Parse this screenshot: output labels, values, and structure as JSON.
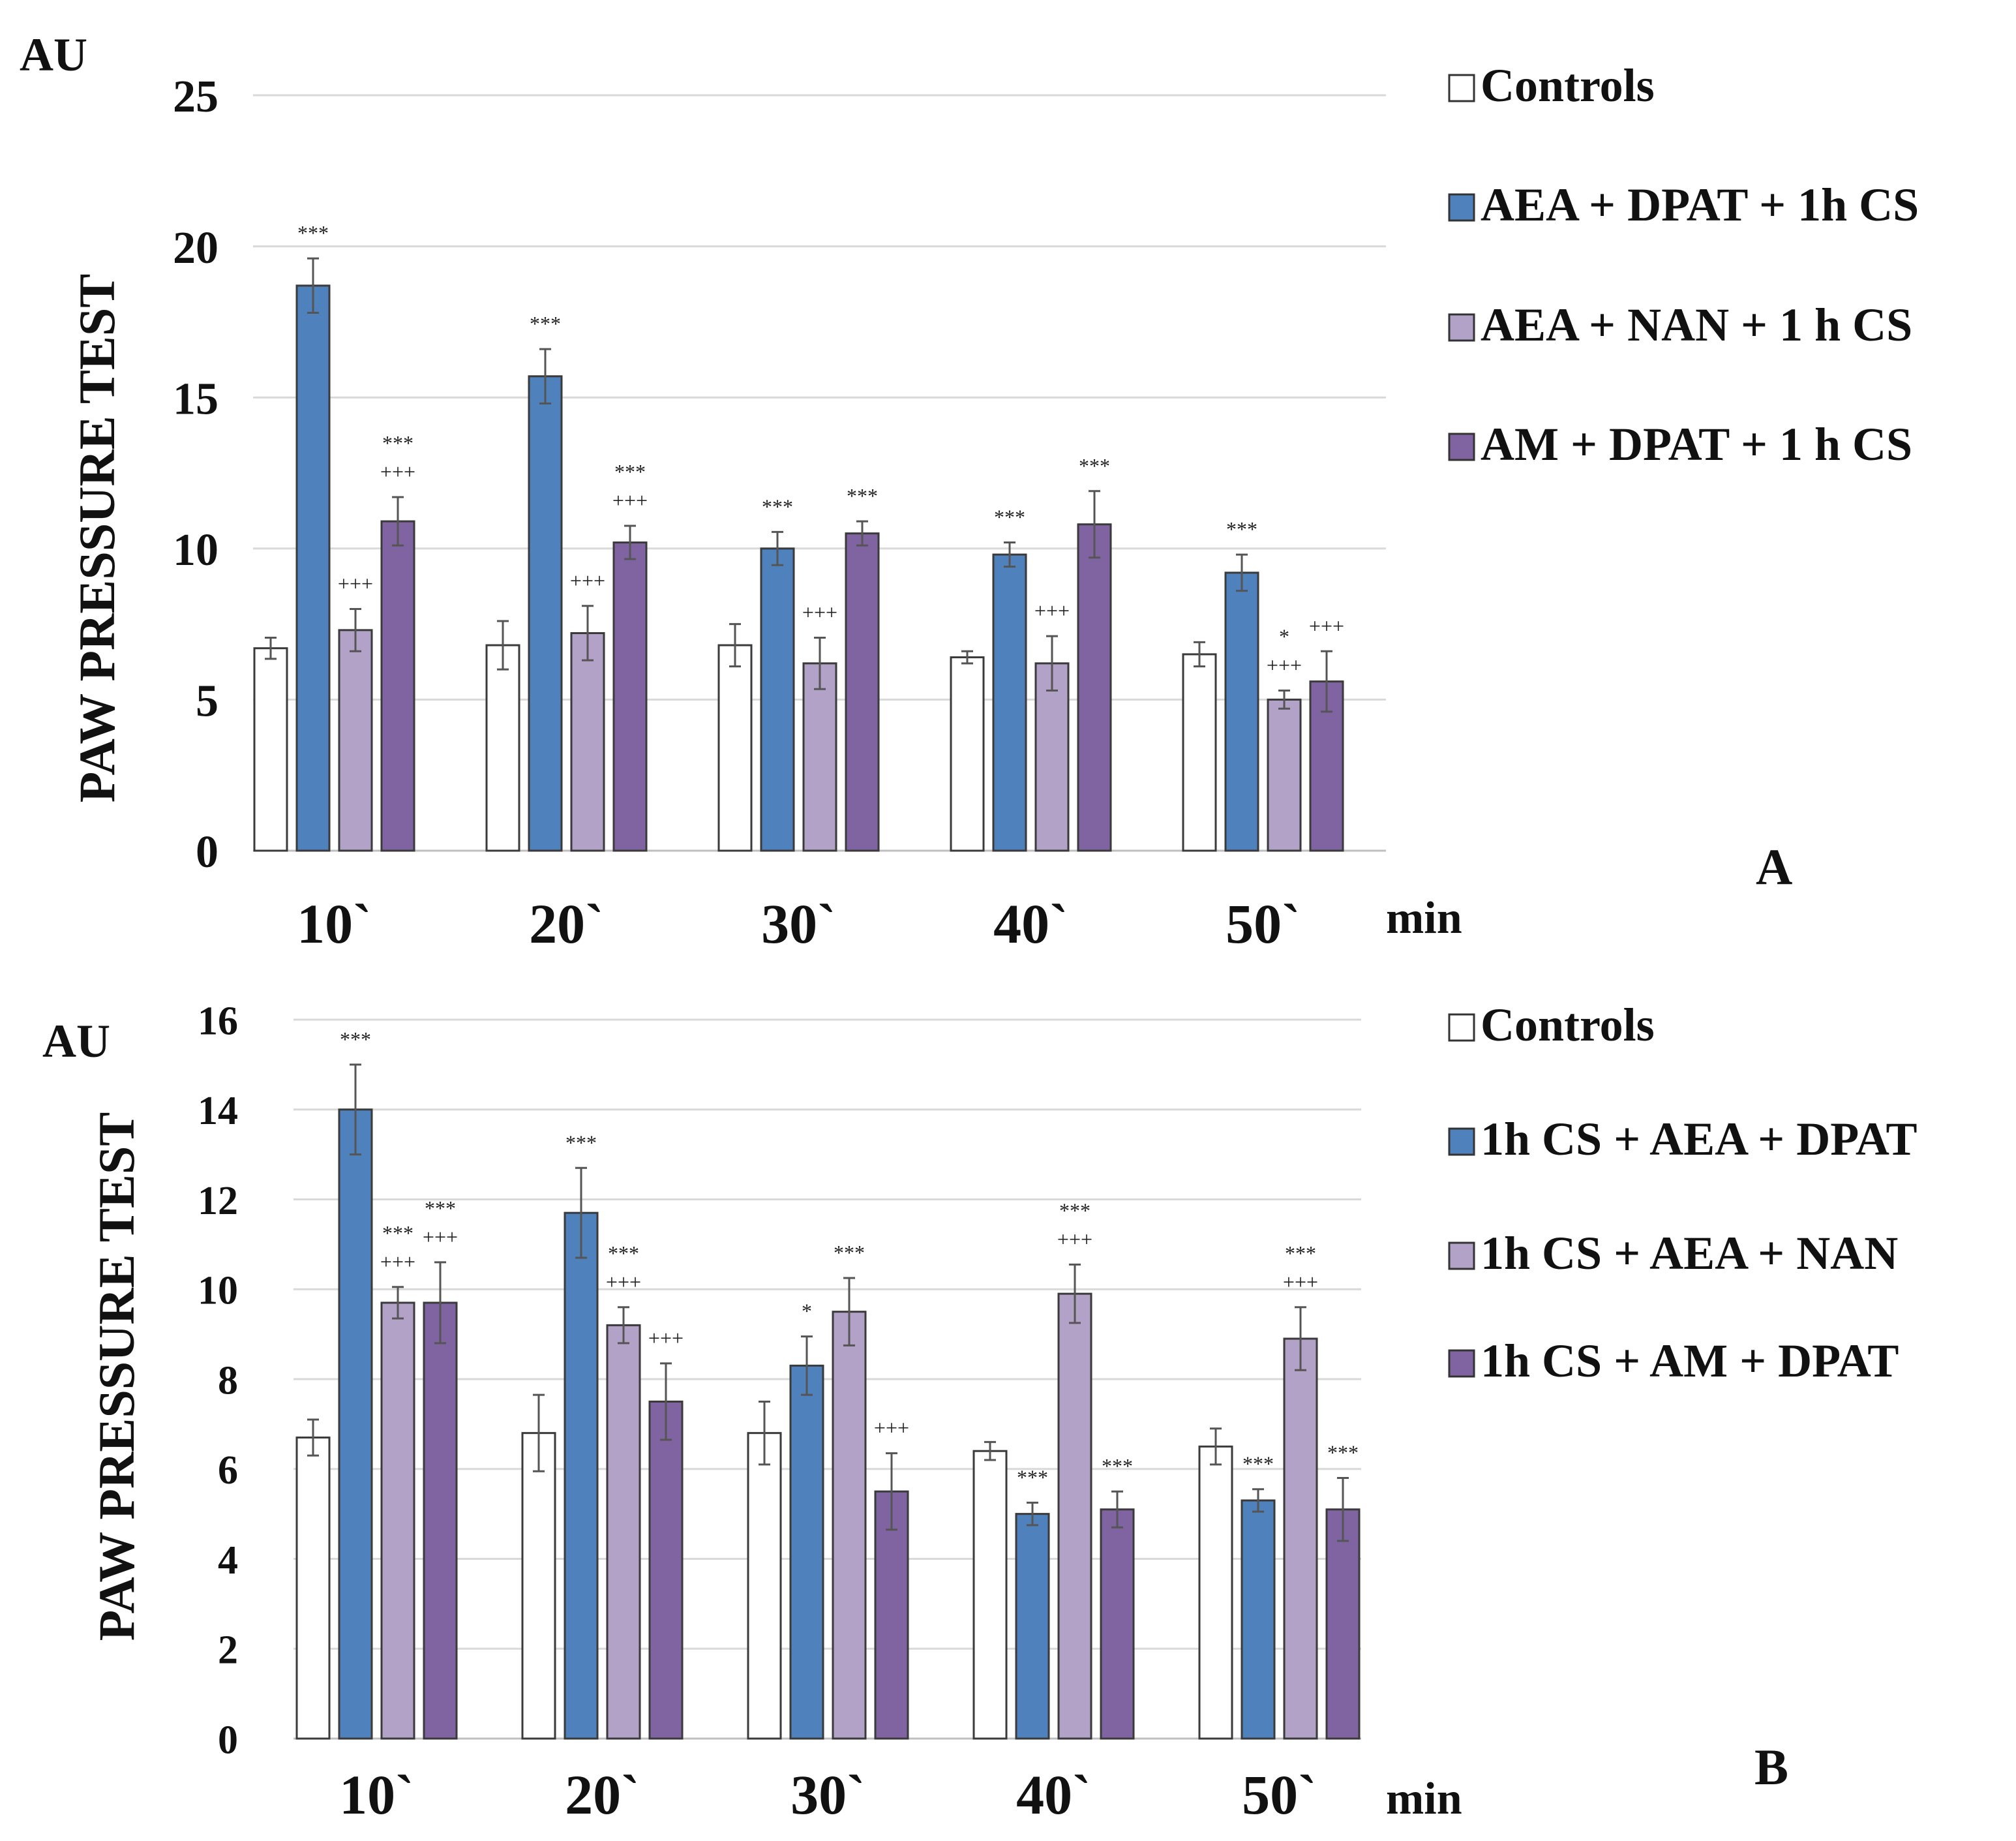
{
  "chart_data": [
    {
      "panel": "A",
      "type": "bar",
      "unit_label": "AU",
      "ylabel": "PAW PRESSURE TEST",
      "xunit": "min",
      "ylim": [
        0,
        25
      ],
      "yticks": [
        0,
        5,
        10,
        15,
        20,
        25
      ],
      "grid": true,
      "categories": [
        "10`",
        "20`",
        "30`",
        "40`",
        "50`"
      ],
      "series": [
        {
          "name": "Controls",
          "color": "#ffffff",
          "values": [
            6.7,
            6.8,
            6.8,
            6.4,
            6.5
          ],
          "errors": [
            0.35,
            0.8,
            0.7,
            0.2,
            0.4
          ],
          "marks": [
            [],
            [],
            [],
            [],
            []
          ]
        },
        {
          "name": "AEA + DPAT + 1h CS",
          "color": "#4f81bd",
          "values": [
            18.7,
            15.7,
            10.0,
            9.8,
            9.2
          ],
          "errors": [
            0.9,
            0.9,
            0.55,
            0.4,
            0.6
          ],
          "marks": [
            [
              "***"
            ],
            [
              "***"
            ],
            [
              "***"
            ],
            [
              "***"
            ],
            [
              "***"
            ]
          ]
        },
        {
          "name": "AEA  + NAN  + 1 h CS",
          "color": "#b3a2c7",
          "values": [
            7.3,
            7.2,
            6.2,
            6.2,
            5.0
          ],
          "errors": [
            0.7,
            0.9,
            0.85,
            0.9,
            0.3
          ],
          "marks": [
            [
              "+++"
            ],
            [
              "+++"
            ],
            [
              "+++"
            ],
            [
              "+++"
            ],
            [
              "*",
              "+++"
            ]
          ]
        },
        {
          "name": "AM +  DPAT + 1 h CS",
          "color": "#8064a2",
          "values": [
            10.9,
            10.2,
            10.5,
            10.8,
            5.6
          ],
          "errors": [
            0.8,
            0.55,
            0.4,
            1.1,
            1.0
          ],
          "marks": [
            [
              "***",
              "+++"
            ],
            [
              "***",
              "+++"
            ],
            [
              "***"
            ],
            [
              "***"
            ],
            [
              "+++"
            ]
          ]
        }
      ]
    },
    {
      "panel": "B",
      "type": "bar",
      "unit_label": "AU",
      "ylabel": "PAW PRESSURE TEST",
      "xunit": "min",
      "ylim": [
        0,
        16
      ],
      "yticks": [
        0,
        2,
        4,
        6,
        8,
        10,
        12,
        14,
        16
      ],
      "grid": true,
      "categories": [
        "10`",
        "20`",
        "30`",
        "40`",
        "50`"
      ],
      "series": [
        {
          "name": "Controls",
          "color": "#ffffff",
          "values": [
            6.7,
            6.8,
            6.8,
            6.4,
            6.5
          ],
          "errors": [
            0.4,
            0.85,
            0.7,
            0.2,
            0.4
          ],
          "marks": [
            [],
            [],
            [],
            [],
            []
          ]
        },
        {
          "name": "1h CS + AEA + DPAT",
          "color": "#4f81bd",
          "values": [
            14.0,
            11.7,
            8.3,
            5.0,
            5.3
          ],
          "errors": [
            1.0,
            1.0,
            0.65,
            0.25,
            0.25
          ],
          "marks": [
            [
              "***"
            ],
            [
              "***"
            ],
            [
              "*"
            ],
            [
              "***"
            ],
            [
              "***"
            ]
          ]
        },
        {
          "name": "1h CS + AEA  + NAN",
          "color": "#b3a2c7",
          "values": [
            9.7,
            9.2,
            9.5,
            9.9,
            8.9
          ],
          "errors": [
            0.35,
            0.4,
            0.75,
            0.65,
            0.7
          ],
          "marks": [
            [
              "***",
              "+++"
            ],
            [
              "***",
              "+++"
            ],
            [
              "***"
            ],
            [
              "***",
              "+++"
            ],
            [
              "***",
              "+++"
            ]
          ]
        },
        {
          "name": "1h CS + AM +  DPAT",
          "color": "#8064a2",
          "values": [
            9.7,
            7.5,
            5.5,
            5.1,
            5.1
          ],
          "errors": [
            0.9,
            0.85,
            0.85,
            0.4,
            0.7
          ],
          "marks": [
            [
              "***",
              "+++"
            ],
            [
              "+++"
            ],
            [
              "+++"
            ],
            [
              "***"
            ],
            [
              "***"
            ]
          ]
        }
      ]
    }
  ]
}
